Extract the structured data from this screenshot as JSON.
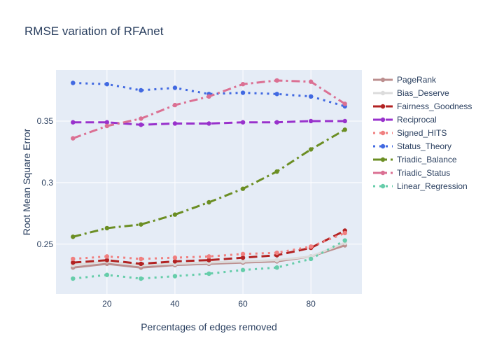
{
  "chart_data": {
    "type": "line",
    "title": "RMSE variation of RFAnet",
    "xlabel": "Percentages of edges removed",
    "ylabel": "Root Mean Square Error",
    "xlim": [
      5,
      95
    ],
    "ylim": [
      0.2095,
      0.3915
    ],
    "xticks": [
      20,
      40,
      60,
      80
    ],
    "yticks": [
      0.25,
      0.3,
      0.35
    ],
    "ytick_labels": [
      "0.25",
      "0.3",
      "0.35"
    ],
    "grid": true,
    "legend_position": "right",
    "x": [
      10,
      20,
      30,
      40,
      50,
      60,
      70,
      80,
      90
    ],
    "series": [
      {
        "name": "PageRank",
        "color": "#bc8f8f",
        "dash": "solid",
        "width": 3,
        "values": [
          0.231,
          0.234,
          0.231,
          0.233,
          0.234,
          0.235,
          0.236,
          0.24,
          0.249
        ]
      },
      {
        "name": "Bias_Deserve",
        "color": "#dcdcdc",
        "dash": "solid",
        "width": 3,
        "values": [
          0.233,
          0.236,
          0.233,
          0.234,
          0.235,
          0.236,
          0.237,
          0.24,
          0.251
        ]
      },
      {
        "name": "Fairness_Goodness",
        "color": "#b22222",
        "dash": "dash",
        "width": 3,
        "values": [
          0.235,
          0.237,
          0.234,
          0.236,
          0.237,
          0.239,
          0.241,
          0.247,
          0.261
        ]
      },
      {
        "name": "Reciprocal",
        "color": "#9932cc",
        "dash": "dash",
        "width": 3,
        "values": [
          0.349,
          0.349,
          0.347,
          0.348,
          0.348,
          0.349,
          0.349,
          0.35,
          0.35
        ]
      },
      {
        "name": "Signed_HITS",
        "color": "#f08080",
        "dash": "dot",
        "width": 3,
        "values": [
          0.238,
          0.24,
          0.238,
          0.239,
          0.24,
          0.242,
          0.243,
          0.248,
          0.259
        ]
      },
      {
        "name": "Status_Theory",
        "color": "#4169e1",
        "dash": "dot",
        "width": 3,
        "values": [
          0.381,
          0.38,
          0.375,
          0.377,
          0.372,
          0.373,
          0.372,
          0.37,
          0.362
        ]
      },
      {
        "name": "Triadic_Balance",
        "color": "#6b8e23",
        "dash": "dashdot",
        "width": 3,
        "values": [
          0.256,
          0.263,
          0.266,
          0.274,
          0.284,
          0.295,
          0.309,
          0.327,
          0.343
        ]
      },
      {
        "name": "Triadic_Status",
        "color": "#db7093",
        "dash": "dashdot",
        "width": 3,
        "values": [
          0.336,
          0.346,
          0.352,
          0.363,
          0.37,
          0.38,
          0.383,
          0.382,
          0.364
        ]
      },
      {
        "name": "Linear_Regression",
        "color": "#66cdaa",
        "dash": "dot",
        "width": 3,
        "values": [
          0.222,
          0.225,
          0.222,
          0.224,
          0.226,
          0.229,
          0.231,
          0.238,
          0.253
        ]
      }
    ]
  }
}
